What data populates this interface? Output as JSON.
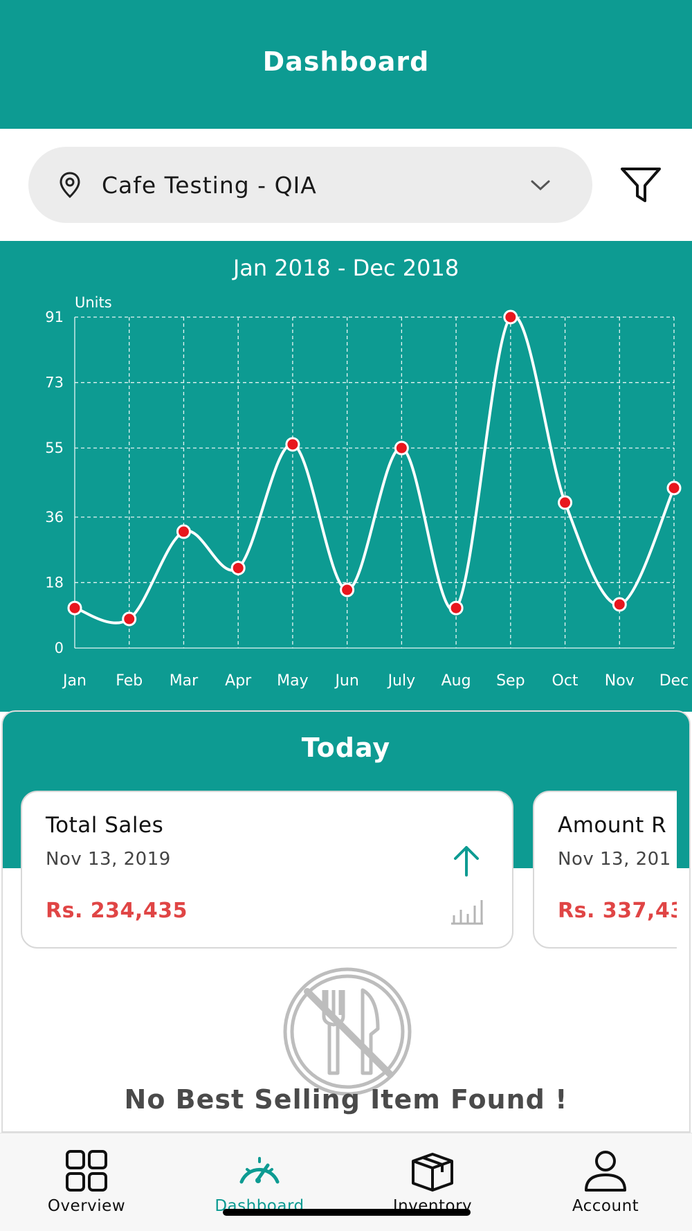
{
  "header": {
    "title": "Dashboard"
  },
  "filter": {
    "location_label": "Cafe Testing - QIA",
    "location_icon": "map-pin-icon",
    "dropdown_icon": "chevron-down-icon",
    "filter_icon": "funnel-filter-icon"
  },
  "chart_data": {
    "type": "line",
    "title": "Jan 2018 - Dec 2018",
    "ylabel": "Units",
    "xlabel": "",
    "categories": [
      "Jan",
      "Feb",
      "Mar",
      "Apr",
      "May",
      "Jun",
      "July",
      "Aug",
      "Sep",
      "Oct",
      "Nov",
      "Dec"
    ],
    "values": [
      11,
      8,
      32,
      22,
      56,
      16,
      55,
      11,
      91,
      40,
      12,
      44
    ],
    "yticks": [
      0,
      18,
      36,
      55,
      73,
      91
    ],
    "ylim": [
      0,
      91
    ],
    "grid": true,
    "line_color": "#ffffff",
    "point_color": "#e8161d"
  },
  "today": {
    "title": "Today",
    "cards": [
      {
        "title": "Total Sales",
        "date": "Nov 13, 2019",
        "amount": "Rs. 234,435",
        "trend_icon": "arrow-up-icon",
        "chart_icon": "bar-chart-icon"
      },
      {
        "title": "Amount R",
        "date": "Nov 13, 201",
        "amount": "Rs. 337,43"
      }
    ],
    "empty_icon": "no-food-icon",
    "empty_message": "No Best Selling Item Found !"
  },
  "nav": {
    "items": [
      {
        "label": "Overview",
        "icon": "grid-icon",
        "active": false
      },
      {
        "label": "Dashboard",
        "icon": "speedometer-icon",
        "active": true
      },
      {
        "label": "Inventory",
        "icon": "box-icon",
        "active": false
      },
      {
        "label": "Account",
        "icon": "user-icon",
        "active": false
      }
    ]
  },
  "colors": {
    "primary": "#0d9b92",
    "amount": "#e04545",
    "active_nav": "#0d9b92"
  }
}
